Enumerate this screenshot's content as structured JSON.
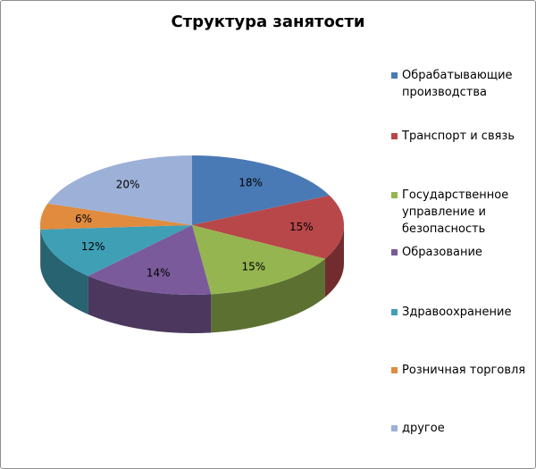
{
  "chart_data": {
    "type": "pie",
    "title": "Структура занятости",
    "legend_position": "right",
    "categories": [
      "Обрабатывающие производства",
      "Транспорт и связь",
      "Государственное управление и безопасность",
      "Образование",
      "Здравоохранение",
      "Розничная торговля",
      "другое"
    ],
    "values": [
      18,
      15,
      15,
      14,
      12,
      6,
      20
    ],
    "data_labels": [
      "18%",
      "15%",
      "15%",
      "14%",
      "12%",
      "6%",
      "20%"
    ],
    "colors": [
      "#4a7ab5",
      "#b8474a",
      "#95b550",
      "#7a5a9a",
      "#3f9fb5",
      "#e08b3e",
      "#9db0d7"
    ],
    "legend_lines": [
      [
        "Обрабатывающие",
        "производства"
      ],
      [
        "Транспорт и связь"
      ],
      [
        "Государственное",
        "управление и",
        "безопасность"
      ],
      [
        "Образование"
      ],
      [
        "Здравоохранение"
      ],
      [
        "Розничная торговля"
      ],
      [
        "другое"
      ]
    ]
  }
}
